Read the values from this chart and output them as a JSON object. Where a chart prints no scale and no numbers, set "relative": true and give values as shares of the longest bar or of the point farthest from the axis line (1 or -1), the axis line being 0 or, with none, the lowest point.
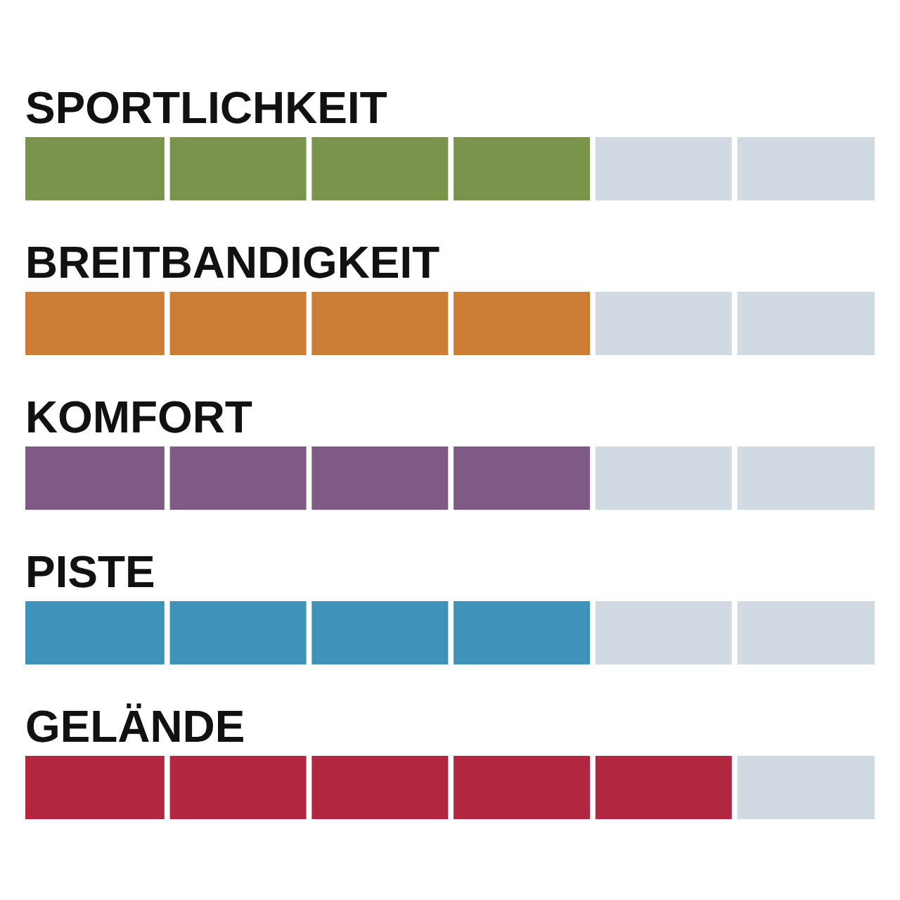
{
  "chart_data": {
    "type": "bar",
    "orientation": "horizontal",
    "stacked": true,
    "relative": true,
    "categories": [
      "SPORTLICHKEIT",
      "BREITBANDIGKEIT",
      "KOMFORT",
      "PISTE",
      "GELÄNDE"
    ],
    "series": [
      {
        "values": [
          0.667,
          0.667,
          0.667,
          0.667,
          0.833
        ],
        "colors": [
          "#7a944b",
          "#cc7d33",
          "#7f5a85",
          "#3e91b9",
          "#b3263f"
        ]
      },
      {
        "values": [
          0.333,
          0.333,
          0.333,
          0.333,
          0.167
        ],
        "color": "#cfdae2"
      }
    ]
  }
}
